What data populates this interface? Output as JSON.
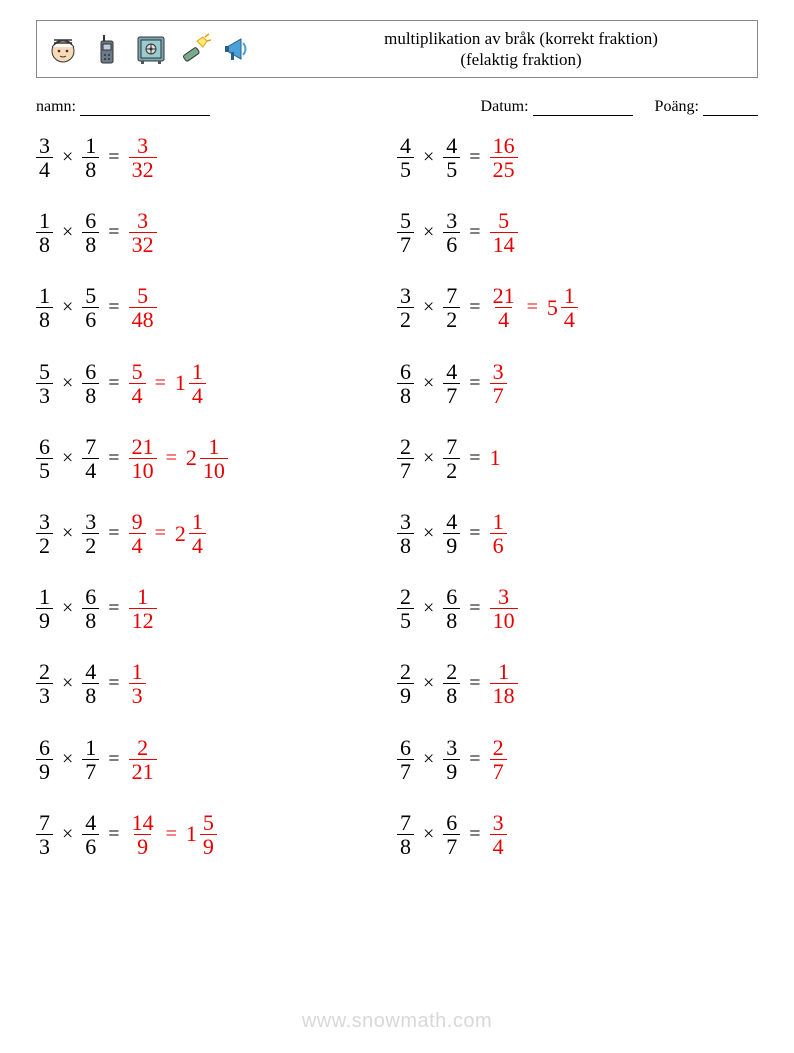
{
  "header": {
    "title_line1": "multiplikation av bråk (korrekt fraktion)",
    "title_line2": "(felaktig fraktion)"
  },
  "labels": {
    "name": "namn:",
    "date": "Datum:",
    "score": "Poäng:"
  },
  "colors": {
    "answer": "#e80000",
    "text": "#000000",
    "border": "#888888",
    "watermark": "#d8d8d8"
  },
  "typography": {
    "body_font": "Georgia, Times New Roman, serif",
    "eq_fontsize": 22,
    "title_fontsize": 17,
    "label_fontsize": 16
  },
  "footer": "www.snowmath.com",
  "problems": [
    {
      "left": {
        "a": [
          3,
          4
        ],
        "b": [
          1,
          8
        ],
        "r": [
          3,
          32
        ]
      },
      "right": {
        "a": [
          4,
          5
        ],
        "b": [
          4,
          5
        ],
        "r": [
          16,
          25
        ]
      }
    },
    {
      "left": {
        "a": [
          1,
          8
        ],
        "b": [
          6,
          8
        ],
        "r": [
          3,
          32
        ]
      },
      "right": {
        "a": [
          5,
          7
        ],
        "b": [
          3,
          6
        ],
        "r": [
          5,
          14
        ]
      }
    },
    {
      "left": {
        "a": [
          1,
          8
        ],
        "b": [
          5,
          6
        ],
        "r": [
          5,
          48
        ]
      },
      "right": {
        "a": [
          3,
          2
        ],
        "b": [
          7,
          2
        ],
        "r": [
          21,
          4
        ],
        "m": [
          5,
          1,
          4
        ]
      }
    },
    {
      "left": {
        "a": [
          5,
          3
        ],
        "b": [
          6,
          8
        ],
        "r": [
          5,
          4
        ],
        "m": [
          1,
          1,
          4
        ]
      },
      "right": {
        "a": [
          6,
          8
        ],
        "b": [
          4,
          7
        ],
        "r": [
          3,
          7
        ]
      }
    },
    {
      "left": {
        "a": [
          6,
          5
        ],
        "b": [
          7,
          4
        ],
        "r": [
          21,
          10
        ],
        "m": [
          2,
          1,
          10
        ]
      },
      "right": {
        "a": [
          2,
          7
        ],
        "b": [
          7,
          2
        ],
        "rw": 1
      }
    },
    {
      "left": {
        "a": [
          3,
          2
        ],
        "b": [
          3,
          2
        ],
        "r": [
          9,
          4
        ],
        "m": [
          2,
          1,
          4
        ]
      },
      "right": {
        "a": [
          3,
          8
        ],
        "b": [
          4,
          9
        ],
        "r": [
          1,
          6
        ]
      }
    },
    {
      "left": {
        "a": [
          1,
          9
        ],
        "b": [
          6,
          8
        ],
        "r": [
          1,
          12
        ]
      },
      "right": {
        "a": [
          2,
          5
        ],
        "b": [
          6,
          8
        ],
        "r": [
          3,
          10
        ]
      }
    },
    {
      "left": {
        "a": [
          2,
          3
        ],
        "b": [
          4,
          8
        ],
        "r": [
          1,
          3
        ]
      },
      "right": {
        "a": [
          2,
          9
        ],
        "b": [
          2,
          8
        ],
        "r": [
          1,
          18
        ]
      }
    },
    {
      "left": {
        "a": [
          6,
          9
        ],
        "b": [
          1,
          7
        ],
        "r": [
          2,
          21
        ]
      },
      "right": {
        "a": [
          6,
          7
        ],
        "b": [
          3,
          9
        ],
        "r": [
          2,
          7
        ]
      }
    },
    {
      "left": {
        "a": [
          7,
          3
        ],
        "b": [
          4,
          6
        ],
        "r": [
          14,
          9
        ],
        "m": [
          1,
          5,
          9
        ]
      },
      "right": {
        "a": [
          7,
          8
        ],
        "b": [
          6,
          7
        ],
        "r": [
          3,
          4
        ]
      }
    }
  ]
}
